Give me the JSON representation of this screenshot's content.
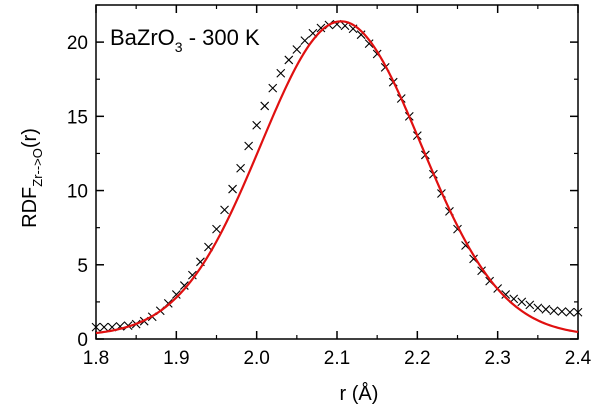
{
  "chart_data": {
    "type": "line",
    "annotation": {
      "main": "BaZrO",
      "sub": "3",
      "tail": " - 300 K"
    },
    "xlabel": "r (Å)",
    "ylabel": {
      "main": "RDF",
      "sub": "Zr-->O",
      "tail": "(r)"
    },
    "xlim": [
      1.8,
      2.4
    ],
    "ylim": [
      0,
      22.5
    ],
    "xticks": [
      1.8,
      1.9,
      2.0,
      2.1,
      2.2,
      2.3,
      2.4
    ],
    "xtick_labels": [
      "1.8",
      "1.9",
      "2.0",
      "2.1",
      "2.2",
      "2.3",
      "2.4"
    ],
    "yticks": [
      0,
      5,
      10,
      15,
      20
    ],
    "ytick_labels": [
      "0",
      "5",
      "10",
      "15",
      "20"
    ],
    "grid": false,
    "series": [
      {
        "style": "markers-x",
        "color": "#000000",
        "x": [
          1.8,
          1.81,
          1.82,
          1.83,
          1.84,
          1.85,
          1.86,
          1.87,
          1.88,
          1.89,
          1.9,
          1.91,
          1.92,
          1.93,
          1.94,
          1.95,
          1.96,
          1.97,
          1.98,
          1.99,
          2.0,
          2.01,
          2.02,
          2.03,
          2.04,
          2.05,
          2.06,
          2.07,
          2.08,
          2.09,
          2.1,
          2.11,
          2.12,
          2.13,
          2.14,
          2.15,
          2.16,
          2.17,
          2.18,
          2.19,
          2.2,
          2.21,
          2.22,
          2.23,
          2.24,
          2.25,
          2.26,
          2.27,
          2.28,
          2.29,
          2.3,
          2.31,
          2.32,
          2.33,
          2.34,
          2.35,
          2.36,
          2.37,
          2.38,
          2.39,
          2.4
        ],
        "y": [
          0.8,
          0.8,
          0.8,
          0.85,
          0.9,
          1.0,
          1.2,
          1.5,
          1.9,
          2.4,
          3.0,
          3.6,
          4.3,
          5.2,
          6.2,
          7.4,
          8.7,
          10.1,
          11.5,
          13.0,
          14.4,
          15.7,
          16.9,
          17.9,
          18.8,
          19.5,
          20.1,
          20.6,
          20.95,
          21.15,
          21.2,
          21.1,
          20.9,
          20.5,
          19.9,
          19.2,
          18.3,
          17.3,
          16.2,
          15.0,
          13.7,
          12.4,
          11.1,
          9.8,
          8.6,
          7.4,
          6.3,
          5.4,
          4.6,
          3.9,
          3.4,
          3.0,
          2.7,
          2.5,
          2.3,
          2.1,
          2.0,
          1.9,
          1.85,
          1.8,
          1.8
        ]
      },
      {
        "style": "line",
        "color": "#e01010",
        "gaussian": {
          "amplitude": 21.2,
          "center": 2.105,
          "sigma": 0.1,
          "offset": 0.2
        }
      }
    ]
  }
}
